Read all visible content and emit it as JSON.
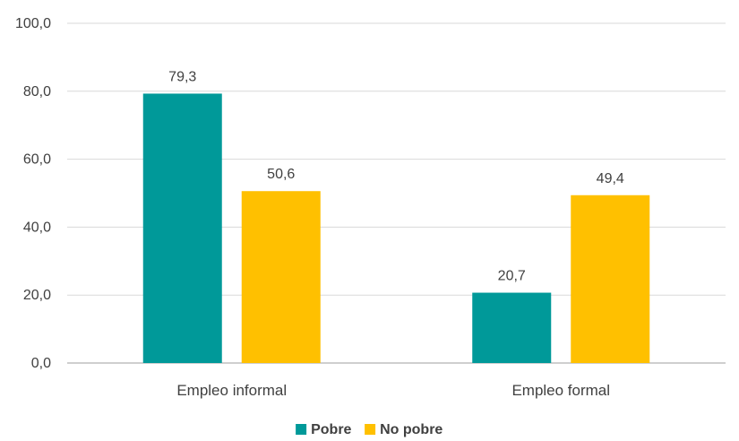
{
  "chart_data": {
    "type": "bar",
    "categories": [
      "Empleo informal",
      "Empleo formal"
    ],
    "series": [
      {
        "name": "Pobre",
        "values": [
          79.3,
          20.7
        ],
        "labels": [
          "79,3",
          "20,7"
        ],
        "color": "#009999"
      },
      {
        "name": "No pobre",
        "values": [
          50.6,
          49.4
        ],
        "labels": [
          "50,6",
          "49,4"
        ],
        "color": "#ffc000"
      }
    ],
    "ylim": [
      0,
      100
    ],
    "yticks": [
      0,
      20,
      40,
      60,
      80,
      100
    ],
    "ytick_labels": [
      "0,0",
      "20,0",
      "40,0",
      "60,0",
      "80,0",
      "100,0"
    ],
    "title": "",
    "xlabel": "",
    "ylabel": "",
    "grid": true,
    "legend": "bottom-center",
    "colors": {
      "grid": "#d9d9d9",
      "axis": "#bfbfbf",
      "text": "#404040"
    }
  }
}
